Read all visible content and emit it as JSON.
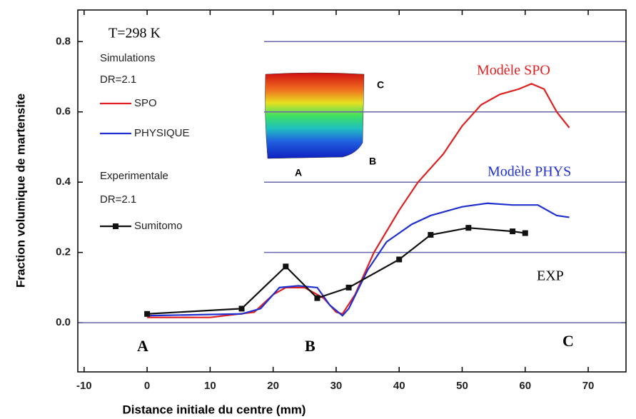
{
  "chart_data": {
    "type": "line",
    "xlabel": "Distance initiale du centre (mm)",
    "ylabel": "Fraction volumique de martensite",
    "xlim": [
      -11,
      76
    ],
    "ylim": [
      -0.14,
      0.89
    ],
    "xticks": [
      -10,
      0,
      10,
      20,
      30,
      40,
      50,
      60,
      70
    ],
    "yticks": [
      {
        "value": 0,
        "label": "0.0"
      },
      0.2,
      0.4,
      0.6,
      0.8
    ],
    "grid": true,
    "grid_color": "#6666aa",
    "legend_titles": [
      "Simulations",
      "DR=2.1",
      "Experimentale",
      "DR=2.1"
    ],
    "annotations": [
      "T=298 K",
      "Modèle SPO",
      "Modèle PHYS",
      "EXP",
      "A",
      "B",
      "C"
    ],
    "inset_labels": [
      "C",
      "A",
      "B"
    ],
    "series": [
      {
        "name": "SPO",
        "color": "#e02020",
        "x": [
          0,
          10,
          17,
          20,
          22,
          25,
          28,
          30,
          31,
          33,
          36,
          40,
          43,
          47,
          50,
          53,
          56,
          59,
          61,
          63,
          65,
          67
        ],
        "values": [
          0.015,
          0.015,
          0.03,
          0.08,
          0.1,
          0.1,
          0.07,
          0.03,
          0.025,
          0.08,
          0.2,
          0.32,
          0.4,
          0.48,
          0.56,
          0.62,
          0.65,
          0.665,
          0.68,
          0.665,
          0.6,
          0.555
        ]
      },
      {
        "name": "PHYSIQUE",
        "color": "#2030d0",
        "x": [
          0,
          15,
          18,
          21,
          24,
          27,
          29,
          31,
          32,
          35,
          38,
          42,
          45,
          50,
          54,
          58,
          62,
          65,
          67
        ],
        "values": [
          0.02,
          0.025,
          0.04,
          0.1,
          0.105,
          0.1,
          0.05,
          0.02,
          0.04,
          0.15,
          0.23,
          0.28,
          0.305,
          0.33,
          0.34,
          0.335,
          0.335,
          0.305,
          0.3
        ]
      },
      {
        "name": "Sumitomo",
        "color": "#111111",
        "marker": "square",
        "x": [
          0,
          15,
          22,
          27,
          32,
          40,
          45,
          51,
          58,
          60
        ],
        "values": [
          0.025,
          0.04,
          0.16,
          0.07,
          0.1,
          0.18,
          0.25,
          0.27,
          0.26,
          0.255
        ]
      }
    ]
  }
}
